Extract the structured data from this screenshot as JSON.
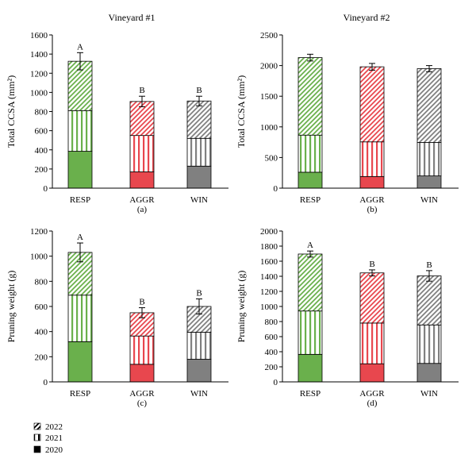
{
  "colors": {
    "RESP": "#6ab04c",
    "AGGR": "#e8474e",
    "WIN": "#808080",
    "axis": "#000000"
  },
  "legend": {
    "items": [
      {
        "label": "2022",
        "pattern": "diagonal"
      },
      {
        "label": "2021",
        "pattern": "vertical"
      },
      {
        "label": "2020",
        "pattern": "solid"
      }
    ]
  },
  "chart_data": [
    {
      "type": "bar",
      "stacked": true,
      "panel_label": "(a)",
      "title": "Vineyard #1",
      "ylabel": "Total CCSA (mm²)",
      "xlabel": "",
      "ylim": [
        0,
        1600
      ],
      "yticks": [
        0,
        200,
        400,
        600,
        800,
        1000,
        1200,
        1400,
        1600
      ],
      "categories": [
        "RESP",
        "AGGR",
        "WIN"
      ],
      "series": [
        {
          "name": "2020",
          "values": [
            385,
            170,
            230
          ]
        },
        {
          "name": "2021",
          "values": [
            425,
            380,
            290
          ]
        },
        {
          "name": "2022",
          "values": [
            515,
            355,
            390
          ]
        }
      ],
      "totals": [
        1325,
        905,
        910
      ],
      "error": [
        90,
        55,
        50
      ],
      "significance_letters": [
        "A",
        "B",
        "B"
      ]
    },
    {
      "type": "bar",
      "stacked": true,
      "panel_label": "(b)",
      "title": "Vineyard #2",
      "ylabel": "Total CCSA (mm²)",
      "xlabel": "",
      "ylim": [
        0,
        2500
      ],
      "yticks": [
        0,
        500,
        1000,
        1500,
        2000,
        2500
      ],
      "categories": [
        "RESP",
        "AGGR",
        "WIN"
      ],
      "series": [
        {
          "name": "2020",
          "values": [
            260,
            190,
            200
          ]
        },
        {
          "name": "2021",
          "values": [
            605,
            565,
            545
          ]
        },
        {
          "name": "2022",
          "values": [
            1265,
            1225,
            1205
          ]
        }
      ],
      "totals": [
        2130,
        1980,
        1950
      ],
      "error": [
        55,
        55,
        50
      ],
      "significance_letters": [
        "",
        "",
        ""
      ]
    },
    {
      "type": "bar",
      "stacked": true,
      "panel_label": "(c)",
      "title": "",
      "ylabel": "Pruning weight (g)",
      "xlabel": "",
      "ylim": [
        0,
        1200
      ],
      "yticks": [
        0,
        200,
        400,
        600,
        800,
        1000,
        1200
      ],
      "categories": [
        "RESP",
        "AGGR",
        "WIN"
      ],
      "series": [
        {
          "name": "2020",
          "values": [
            320,
            140,
            180
          ]
        },
        {
          "name": "2021",
          "values": [
            370,
            225,
            215
          ]
        },
        {
          "name": "2022",
          "values": [
            340,
            185,
            205
          ]
        }
      ],
      "totals": [
        1030,
        550,
        600
      ],
      "error": [
        75,
        40,
        60
      ],
      "significance_letters": [
        "A",
        "B",
        "B"
      ]
    },
    {
      "type": "bar",
      "stacked": true,
      "panel_label": "(d)",
      "title": "",
      "ylabel": "Pruning weight (g)",
      "xlabel": "",
      "ylim": [
        0,
        2000
      ],
      "yticks": [
        0,
        200,
        400,
        600,
        800,
        1000,
        1200,
        1400,
        1600,
        1800,
        2000
      ],
      "categories": [
        "RESP",
        "AGGR",
        "WIN"
      ],
      "series": [
        {
          "name": "2020",
          "values": [
            365,
            240,
            245
          ]
        },
        {
          "name": "2021",
          "values": [
            575,
            540,
            510
          ]
        },
        {
          "name": "2022",
          "values": [
            755,
            665,
            650
          ]
        }
      ],
      "totals": [
        1695,
        1445,
        1405
      ],
      "error": [
        40,
        40,
        70
      ],
      "significance_letters": [
        "A",
        "B",
        "B"
      ]
    }
  ]
}
